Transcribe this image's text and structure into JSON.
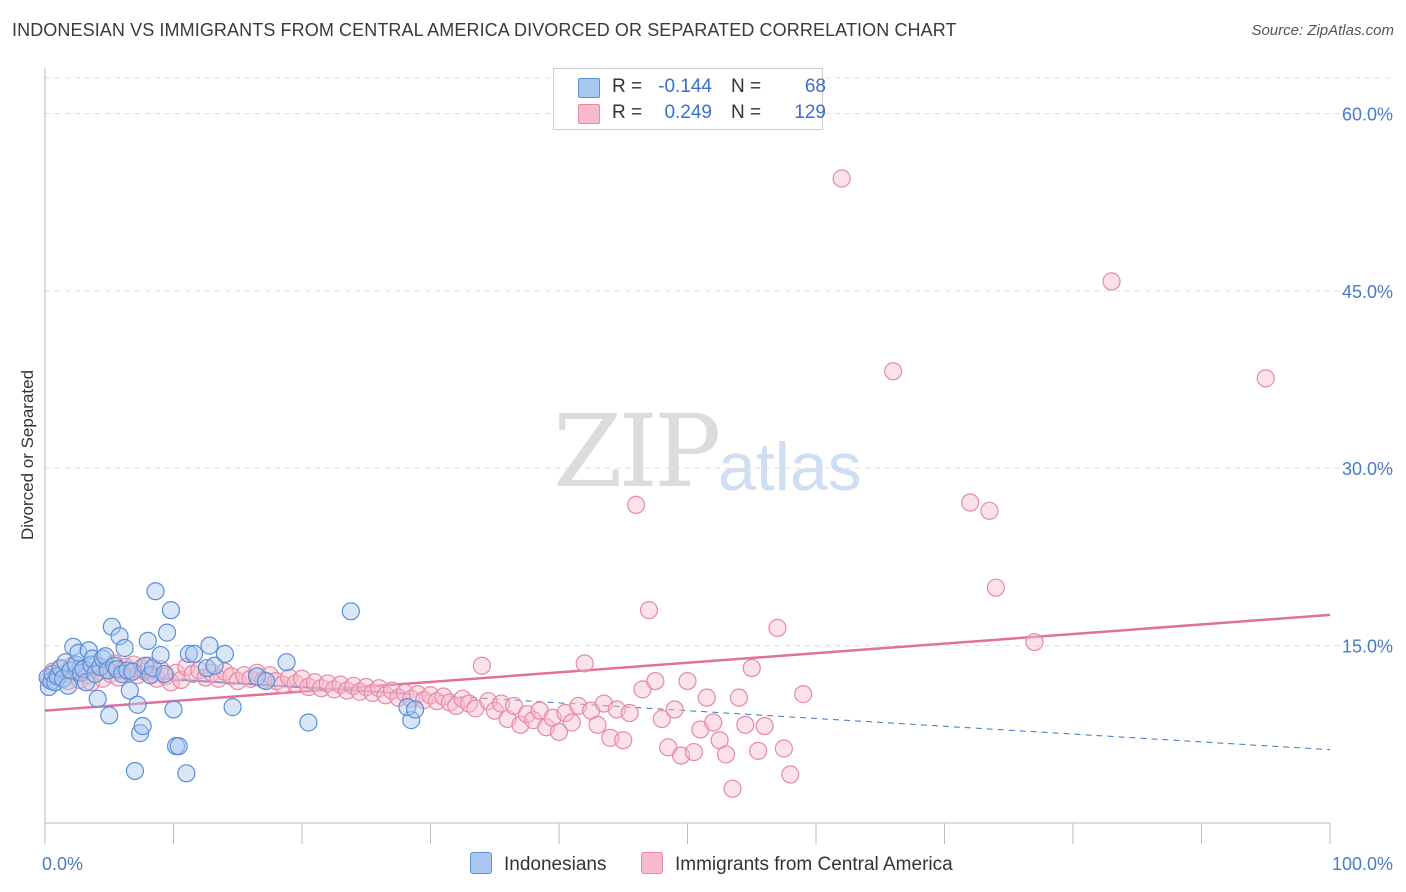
{
  "title": "INDONESIAN VS IMMIGRANTS FROM CENTRAL AMERICA DIVORCED OR SEPARATED CORRELATION CHART",
  "source": "Source: ZipAtlas.com",
  "watermark": {
    "zip": "ZIP",
    "atlas": "atlas"
  },
  "colors": {
    "indonesian_fill": "#a8c8f0",
    "indonesian_stroke": "#5b8fd6",
    "indonesian_line": "#3d72cc",
    "central_fill": "#f6bccd",
    "central_stroke": "#e58aa8",
    "central_line": "#e0719a",
    "tick_text": "#4a7bc8",
    "grid": "#dddddd"
  },
  "legend": {
    "rows": [
      {
        "r_label": "R =",
        "r_value": "-0.144",
        "n_label": "N =",
        "n_value": "68"
      },
      {
        "r_label": "R =",
        "r_value": "0.249",
        "n_label": "N =",
        "n_value": "129"
      }
    ]
  },
  "bottom_legend": {
    "series1": "Indonesians",
    "series2": "Immigrants from Central America"
  },
  "chart_data": {
    "type": "scatter",
    "title": "INDONESIAN VS IMMIGRANTS FROM CENTRAL AMERICA DIVORCED OR SEPARATED CORRELATION CHART",
    "xlabel": "",
    "ylabel": "Divorced or Separated",
    "xlim": [
      0,
      100
    ],
    "ylim": [
      0,
      63
    ],
    "x_tick_labels": [
      "0.0%",
      "100.0%"
    ],
    "y_ticks": [
      15,
      30,
      45,
      60
    ],
    "y_tick_labels": [
      "15.0%",
      "30.0%",
      "45.0%",
      "60.0%"
    ],
    "grid": true,
    "legend_position": "top-center",
    "series": [
      {
        "name": "Indonesians",
        "r": -0.144,
        "n": 68,
        "trend": {
          "x": [
            0,
            100
          ],
          "y": [
            12.8,
            6.2
          ],
          "solid_until_x": 28
        },
        "points": [
          [
            0.2,
            12.3
          ],
          [
            0.3,
            11.5
          ],
          [
            0.5,
            12.0
          ],
          [
            0.6,
            12.6
          ],
          [
            0.8,
            11.9
          ],
          [
            1.0,
            12.4
          ],
          [
            1.2,
            13.1
          ],
          [
            1.4,
            12.2
          ],
          [
            1.6,
            13.6
          ],
          [
            1.8,
            11.6
          ],
          [
            2.0,
            12.9
          ],
          [
            2.2,
            14.9
          ],
          [
            2.4,
            13.4
          ],
          [
            2.6,
            14.4
          ],
          [
            2.8,
            12.7
          ],
          [
            3.0,
            13.0
          ],
          [
            3.2,
            11.9
          ],
          [
            3.4,
            14.6
          ],
          [
            3.6,
            13.4
          ],
          [
            3.7,
            13.9
          ],
          [
            3.9,
            12.6
          ],
          [
            4.1,
            10.5
          ],
          [
            4.3,
            13.2
          ],
          [
            4.5,
            13.9
          ],
          [
            4.7,
            14.1
          ],
          [
            4.9,
            12.9
          ],
          [
            5.0,
            9.1
          ],
          [
            5.2,
            16.6
          ],
          [
            5.4,
            13.3
          ],
          [
            5.6,
            13.0
          ],
          [
            5.8,
            15.8
          ],
          [
            6.0,
            12.6
          ],
          [
            6.2,
            14.8
          ],
          [
            6.4,
            12.9
          ],
          [
            6.6,
            11.2
          ],
          [
            6.8,
            12.8
          ],
          [
            7.0,
            4.4
          ],
          [
            7.2,
            10.0
          ],
          [
            7.4,
            7.6
          ],
          [
            7.6,
            8.2
          ],
          [
            7.8,
            13.3
          ],
          [
            8.0,
            15.4
          ],
          [
            8.2,
            12.5
          ],
          [
            8.4,
            13.1
          ],
          [
            8.6,
            19.6
          ],
          [
            9.0,
            14.2
          ],
          [
            9.3,
            12.6
          ],
          [
            9.5,
            16.1
          ],
          [
            9.8,
            18.0
          ],
          [
            10.0,
            9.6
          ],
          [
            10.2,
            6.5
          ],
          [
            10.4,
            6.5
          ],
          [
            11.0,
            4.2
          ],
          [
            11.2,
            14.3
          ],
          [
            11.6,
            14.3
          ],
          [
            12.8,
            15.0
          ],
          [
            12.6,
            13.1
          ],
          [
            13.2,
            13.3
          ],
          [
            14.0,
            14.3
          ],
          [
            14.6,
            9.8
          ],
          [
            16.5,
            12.4
          ],
          [
            17.2,
            12.0
          ],
          [
            18.8,
            13.6
          ],
          [
            20.5,
            8.5
          ],
          [
            23.8,
            17.9
          ],
          [
            28.5,
            8.7
          ],
          [
            28.2,
            9.8
          ],
          [
            28.8,
            9.6
          ]
        ]
      },
      {
        "name": "Immigrants from Central America",
        "r": 0.249,
        "n": 129,
        "trend": {
          "x": [
            0,
            100
          ],
          "y": [
            9.5,
            17.6
          ]
        },
        "points": [
          [
            0.3,
            12.1
          ],
          [
            0.6,
            12.8
          ],
          [
            0.9,
            12.4
          ],
          [
            1.2,
            13.0
          ],
          [
            1.5,
            12.6
          ],
          [
            1.8,
            12.0
          ],
          [
            2.1,
            13.3
          ],
          [
            2.4,
            12.7
          ],
          [
            2.7,
            12.1
          ],
          [
            3.0,
            13.1
          ],
          [
            3.3,
            12.5
          ],
          [
            3.6,
            11.9
          ],
          [
            3.9,
            13.4
          ],
          [
            4.2,
            12.8
          ],
          [
            4.5,
            12.2
          ],
          [
            4.8,
            13.0
          ],
          [
            5.1,
            12.6
          ],
          [
            5.4,
            13.5
          ],
          [
            5.7,
            12.3
          ],
          [
            6.0,
            12.9
          ],
          [
            6.3,
            13.2
          ],
          [
            6.6,
            12.7
          ],
          [
            6.9,
            13.4
          ],
          [
            7.2,
            12.5
          ],
          [
            7.5,
            13.1
          ],
          [
            7.8,
            12.8
          ],
          [
            8.1,
            13.3
          ],
          [
            8.4,
            12.6
          ],
          [
            8.7,
            12.2
          ],
          [
            9.0,
            13.0
          ],
          [
            9.4,
            12.4
          ],
          [
            9.8,
            11.9
          ],
          [
            10.2,
            12.7
          ],
          [
            10.6,
            12.1
          ],
          [
            11.0,
            13.2
          ],
          [
            11.5,
            12.6
          ],
          [
            12.0,
            12.9
          ],
          [
            12.5,
            12.3
          ],
          [
            13.0,
            12.7
          ],
          [
            13.5,
            12.2
          ],
          [
            14.0,
            12.8
          ],
          [
            14.5,
            12.4
          ],
          [
            15.0,
            12.0
          ],
          [
            15.5,
            12.5
          ],
          [
            16.0,
            12.2
          ],
          [
            16.5,
            12.7
          ],
          [
            17.0,
            12.1
          ],
          [
            17.5,
            12.5
          ],
          [
            18.0,
            12.0
          ],
          [
            18.5,
            11.7
          ],
          [
            19.0,
            12.3
          ],
          [
            19.5,
            11.8
          ],
          [
            20.0,
            12.2
          ],
          [
            20.5,
            11.5
          ],
          [
            21.0,
            11.9
          ],
          [
            21.5,
            11.4
          ],
          [
            22.0,
            11.8
          ],
          [
            22.5,
            11.3
          ],
          [
            23.0,
            11.7
          ],
          [
            23.5,
            11.2
          ],
          [
            24.0,
            11.6
          ],
          [
            24.5,
            11.1
          ],
          [
            25.0,
            11.5
          ],
          [
            25.5,
            11.0
          ],
          [
            26.0,
            11.4
          ],
          [
            26.5,
            10.8
          ],
          [
            27.0,
            11.2
          ],
          [
            27.5,
            10.6
          ],
          [
            28.0,
            11.0
          ],
          [
            28.5,
            10.5
          ],
          [
            29.0,
            10.9
          ],
          [
            29.5,
            10.4
          ],
          [
            30.0,
            10.8
          ],
          [
            30.5,
            10.3
          ],
          [
            31.0,
            10.7
          ],
          [
            31.5,
            10.2
          ],
          [
            32.0,
            9.9
          ],
          [
            32.5,
            10.5
          ],
          [
            33.0,
            10.1
          ],
          [
            33.5,
            9.7
          ],
          [
            34.0,
            13.3
          ],
          [
            34.5,
            10.3
          ],
          [
            35.0,
            9.5
          ],
          [
            35.5,
            10.1
          ],
          [
            36.0,
            8.8
          ],
          [
            36.5,
            9.9
          ],
          [
            37.0,
            8.3
          ],
          [
            37.5,
            9.2
          ],
          [
            38.0,
            8.7
          ],
          [
            38.5,
            9.5
          ],
          [
            39.0,
            8.1
          ],
          [
            39.5,
            8.9
          ],
          [
            40.0,
            7.7
          ],
          [
            40.5,
            9.3
          ],
          [
            41.0,
            8.5
          ],
          [
            41.5,
            9.9
          ],
          [
            42.0,
            13.5
          ],
          [
            42.5,
            9.5
          ],
          [
            43.0,
            8.3
          ],
          [
            43.5,
            10.1
          ],
          [
            44.0,
            7.2
          ],
          [
            44.5,
            9.6
          ],
          [
            45.0,
            7.0
          ],
          [
            45.5,
            9.3
          ],
          [
            46.0,
            26.9
          ],
          [
            46.5,
            11.3
          ],
          [
            47.0,
            18.0
          ],
          [
            47.5,
            12.0
          ],
          [
            48.0,
            8.8
          ],
          [
            48.5,
            6.4
          ],
          [
            49.0,
            9.6
          ],
          [
            49.5,
            5.7
          ],
          [
            50.0,
            12.0
          ],
          [
            50.5,
            6.0
          ],
          [
            51.0,
            7.9
          ],
          [
            51.5,
            10.6
          ],
          [
            52.0,
            8.5
          ],
          [
            52.5,
            7.0
          ],
          [
            53.0,
            5.8
          ],
          [
            53.5,
            2.9
          ],
          [
            54.0,
            10.6
          ],
          [
            54.5,
            8.3
          ],
          [
            55.0,
            13.1
          ],
          [
            55.5,
            6.1
          ],
          [
            56.0,
            8.2
          ],
          [
            57.0,
            16.5
          ],
          [
            57.5,
            6.3
          ],
          [
            58.0,
            4.1
          ],
          [
            59.0,
            10.9
          ],
          [
            62.0,
            54.5
          ],
          [
            66.0,
            38.2
          ],
          [
            72.0,
            27.1
          ],
          [
            73.5,
            26.4
          ],
          [
            74.0,
            19.9
          ],
          [
            77.0,
            15.3
          ],
          [
            83.0,
            45.8
          ],
          [
            95.0,
            37.6
          ]
        ]
      }
    ]
  }
}
